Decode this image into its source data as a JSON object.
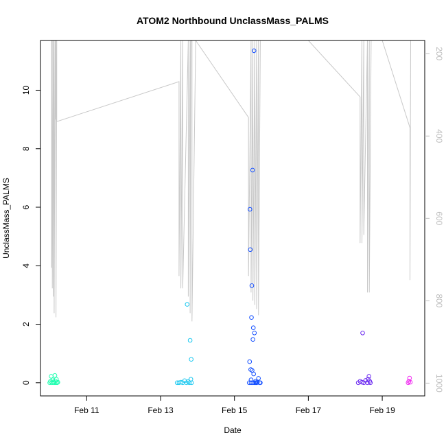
{
  "chart_data": {
    "type": "scatter",
    "title": "ATOM2 Northbound UnclassMass_PALMS",
    "xlabel": "Date",
    "ylabel": "UnclassMass_PALMS",
    "x_ticks": [
      "Feb 11",
      "Feb 13",
      "Feb 15",
      "Feb 17",
      "Feb 19"
    ],
    "y_ticks": [
      "0",
      "2",
      "4",
      "6",
      "8",
      "10"
    ],
    "y2_ticks": [
      "200",
      "400",
      "600",
      "800",
      "1000"
    ],
    "xlim_days": [
      9.75,
      20.15
    ],
    "ylim": [
      -0.45,
      11.7
    ],
    "y2lim": [
      1031,
      168
    ],
    "colors": {
      "axis": "#000000",
      "secondary_axis": "#bebebe",
      "pressure_trace": "#c8c8c8"
    },
    "series": [
      {
        "color": "#1effb0",
        "points": [
          [
            10.0,
            0.0
          ],
          [
            10.02,
            0.05
          ],
          [
            10.04,
            0.22
          ],
          [
            10.06,
            0.0
          ],
          [
            10.08,
            0.1
          ],
          [
            10.1,
            0.03
          ],
          [
            10.12,
            0.0
          ],
          [
            10.14,
            0.25
          ],
          [
            10.15,
            0.06
          ],
          [
            10.17,
            0.0
          ],
          [
            10.18,
            0.12
          ],
          [
            10.2,
            0.0
          ],
          [
            10.22,
            0.02
          ]
        ]
      },
      {
        "color": "#1ac8f0",
        "points": [
          [
            13.45,
            0.0
          ],
          [
            13.5,
            0.0
          ],
          [
            13.55,
            0.02
          ],
          [
            13.6,
            0.0
          ],
          [
            13.65,
            0.07
          ],
          [
            13.7,
            0.0
          ],
          [
            13.72,
            2.68
          ],
          [
            13.75,
            0.04
          ],
          [
            13.78,
            0.0
          ],
          [
            13.8,
            1.45
          ],
          [
            13.82,
            0.12
          ],
          [
            13.83,
            0.8
          ],
          [
            13.84,
            0.0
          ]
        ]
      },
      {
        "color": "#1550ff",
        "points": [
          [
            15.4,
            0.0
          ],
          [
            15.41,
            0.72
          ],
          [
            15.42,
            5.93
          ],
          [
            15.43,
            4.55
          ],
          [
            15.44,
            0.45
          ],
          [
            15.45,
            0.1
          ],
          [
            15.46,
            2.23
          ],
          [
            15.47,
            3.32
          ],
          [
            15.48,
            0.42
          ],
          [
            15.49,
            7.27
          ],
          [
            15.5,
            1.48
          ],
          [
            15.51,
            1.88
          ],
          [
            15.52,
            0.3
          ],
          [
            15.53,
            11.35
          ],
          [
            15.54,
            1.7
          ],
          [
            15.55,
            0.0
          ],
          [
            15.57,
            0.05
          ],
          [
            15.6,
            0.0
          ],
          [
            15.62,
            0.02
          ],
          [
            15.65,
            0.15
          ],
          [
            15.68,
            0.0
          ],
          [
            15.7,
            0.0
          ],
          [
            15.5,
            0.0
          ],
          [
            15.45,
            0.0
          ],
          [
            15.58,
            0.0
          ]
        ]
      },
      {
        "color": "#6a28f0",
        "points": [
          [
            18.35,
            0.0
          ],
          [
            18.4,
            0.05
          ],
          [
            18.45,
            0.02
          ],
          [
            18.47,
            1.7
          ],
          [
            18.5,
            0.0
          ],
          [
            18.55,
            0.08
          ],
          [
            18.6,
            0.0
          ],
          [
            18.62,
            0.12
          ],
          [
            18.64,
            0.22
          ],
          [
            18.66,
            0.05
          ],
          [
            18.68,
            0.0
          ]
        ]
      },
      {
        "color": "#f028f0",
        "points": [
          [
            19.7,
            0.0
          ],
          [
            19.72,
            0.05
          ],
          [
            19.74,
            0.16
          ],
          [
            19.76,
            0.02
          ]
        ]
      }
    ],
    "pressure_trace_hpa": [
      [
        10.05,
        168
      ],
      [
        10.05,
        720
      ],
      [
        10.07,
        168
      ],
      [
        10.07,
        770
      ],
      [
        10.1,
        168
      ],
      [
        10.1,
        790
      ],
      [
        10.12,
        168
      ],
      [
        10.12,
        830
      ],
      [
        10.15,
        168
      ],
      [
        10.15,
        360
      ],
      [
        10.17,
        168
      ],
      [
        10.17,
        840
      ],
      [
        10.19,
        168
      ],
      [
        10.19,
        365
      ],
      [
        13.5,
        268
      ],
      [
        13.5,
        740
      ],
      [
        13.55,
        168
      ],
      [
        13.55,
        770
      ],
      [
        13.6,
        168
      ],
      [
        13.6,
        770
      ],
      [
        13.75,
        168
      ],
      [
        13.75,
        790
      ],
      [
        13.8,
        168
      ],
      [
        13.8,
        830
      ],
      [
        13.82,
        168
      ],
      [
        13.82,
        170
      ],
      [
        13.85,
        168
      ],
      [
        13.85,
        850
      ],
      [
        13.95,
        168
      ],
      [
        13.95,
        168
      ],
      [
        15.38,
        355
      ],
      [
        15.38,
        740
      ],
      [
        15.45,
        168
      ],
      [
        15.45,
        780
      ],
      [
        15.5,
        168
      ],
      [
        15.5,
        800
      ],
      [
        15.55,
        168
      ],
      [
        15.55,
        810
      ],
      [
        15.6,
        168
      ],
      [
        15.6,
        820
      ],
      [
        15.65,
        168
      ],
      [
        15.65,
        835
      ],
      [
        15.7,
        168
      ],
      [
        15.7,
        168
      ],
      [
        17.0,
        168
      ],
      [
        18.4,
        305
      ],
      [
        18.4,
        660
      ],
      [
        18.45,
        168
      ],
      [
        18.45,
        660
      ],
      [
        18.5,
        168
      ],
      [
        18.5,
        640
      ],
      [
        18.6,
        168
      ],
      [
        18.6,
        780
      ],
      [
        18.65,
        168
      ],
      [
        18.65,
        780
      ],
      [
        18.7,
        168
      ],
      [
        18.7,
        168
      ],
      [
        19.0,
        168
      ],
      [
        19.75,
        380
      ],
      [
        19.75,
        750
      ],
      [
        19.77,
        168
      ]
    ]
  }
}
